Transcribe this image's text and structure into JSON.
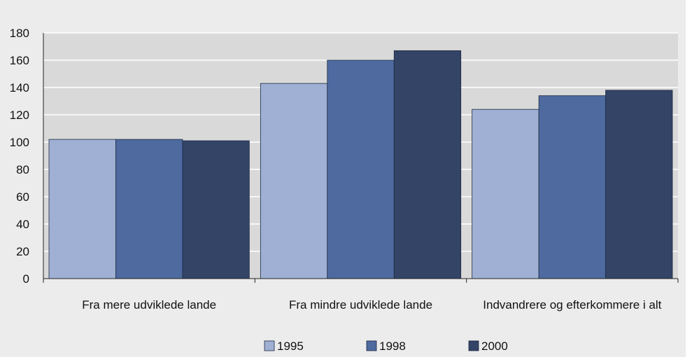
{
  "chart_data": {
    "type": "bar",
    "title": "",
    "xlabel": "",
    "ylabel": "",
    "ylim": [
      0,
      180
    ],
    "yticks": [
      0,
      20,
      40,
      60,
      80,
      100,
      120,
      140,
      160,
      180
    ],
    "grid": true,
    "legend_position": "bottom",
    "categories": [
      "Fra mere udviklede lande",
      "Fra mindre udviklede lande",
      "Indvandrere og efterkommere i alt"
    ],
    "series": [
      {
        "name": "1995",
        "color": "#9fb0d4",
        "values": [
          102,
          143,
          124
        ]
      },
      {
        "name": "1998",
        "color": "#4e6a9f",
        "values": [
          102,
          160,
          134
        ]
      },
      {
        "name": "2000",
        "color": "#334467",
        "values": [
          101,
          167,
          138
        ]
      }
    ]
  }
}
